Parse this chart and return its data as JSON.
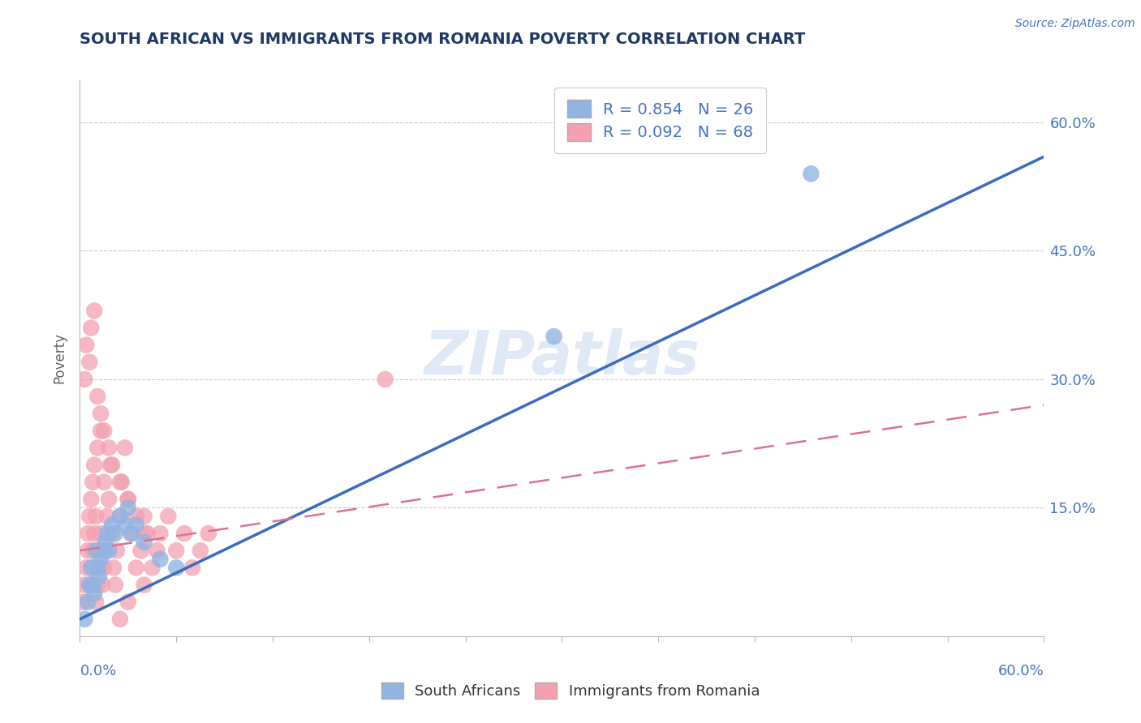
{
  "title": "SOUTH AFRICAN VS IMMIGRANTS FROM ROMANIA POVERTY CORRELATION CHART",
  "source_text": "Source: ZipAtlas.com",
  "ylabel": "Poverty",
  "y_lim": [
    0.0,
    0.65
  ],
  "x_lim": [
    0.0,
    0.6
  ],
  "watermark": "ZIPatlas",
  "blue_color": "#92B4E3",
  "pink_color": "#F4A0B0",
  "blue_line_color": "#3A6BBF",
  "pink_line_color": "#E07090",
  "axis_color": "#4472C4",
  "title_color": "#1F3864",
  "legend_color": "#4472C4",
  "blue_line": [
    0.0,
    0.02,
    0.6,
    0.56
  ],
  "pink_line": [
    0.0,
    0.1,
    0.6,
    0.27
  ],
  "blue_x": [
    0.003,
    0.005,
    0.006,
    0.007,
    0.008,
    0.009,
    0.01,
    0.011,
    0.012,
    0.013,
    0.015,
    0.016,
    0.017,
    0.018,
    0.02,
    0.022,
    0.025,
    0.028,
    0.03,
    0.032,
    0.035,
    0.04,
    0.05,
    0.06,
    0.295,
    0.455
  ],
  "blue_y": [
    0.02,
    0.04,
    0.06,
    0.08,
    0.06,
    0.05,
    0.1,
    0.08,
    0.07,
    0.09,
    0.1,
    0.11,
    0.12,
    0.1,
    0.13,
    0.12,
    0.14,
    0.13,
    0.15,
    0.12,
    0.13,
    0.11,
    0.09,
    0.08,
    0.35,
    0.54
  ],
  "pink_x": [
    0.002,
    0.003,
    0.004,
    0.005,
    0.005,
    0.006,
    0.006,
    0.007,
    0.007,
    0.008,
    0.008,
    0.009,
    0.009,
    0.01,
    0.01,
    0.011,
    0.011,
    0.012,
    0.012,
    0.013,
    0.013,
    0.014,
    0.015,
    0.015,
    0.016,
    0.017,
    0.018,
    0.019,
    0.02,
    0.021,
    0.022,
    0.023,
    0.025,
    0.026,
    0.028,
    0.03,
    0.032,
    0.035,
    0.038,
    0.04,
    0.042,
    0.045,
    0.048,
    0.05,
    0.055,
    0.06,
    0.065,
    0.07,
    0.075,
    0.08,
    0.003,
    0.004,
    0.006,
    0.007,
    0.009,
    0.011,
    0.013,
    0.015,
    0.018,
    0.02,
    0.025,
    0.03,
    0.035,
    0.04,
    0.19,
    0.025,
    0.03,
    0.04
  ],
  "pink_y": [
    0.04,
    0.06,
    0.08,
    0.1,
    0.12,
    0.14,
    0.06,
    0.08,
    0.16,
    0.1,
    0.18,
    0.12,
    0.2,
    0.14,
    0.04,
    0.06,
    0.22,
    0.08,
    0.1,
    0.12,
    0.24,
    0.06,
    0.08,
    0.18,
    0.1,
    0.14,
    0.16,
    0.2,
    0.12,
    0.08,
    0.06,
    0.1,
    0.14,
    0.18,
    0.22,
    0.16,
    0.12,
    0.08,
    0.1,
    0.14,
    0.12,
    0.08,
    0.1,
    0.12,
    0.14,
    0.1,
    0.12,
    0.08,
    0.1,
    0.12,
    0.3,
    0.34,
    0.32,
    0.36,
    0.38,
    0.28,
    0.26,
    0.24,
    0.22,
    0.2,
    0.18,
    0.16,
    0.14,
    0.12,
    0.3,
    0.02,
    0.04,
    0.06
  ]
}
